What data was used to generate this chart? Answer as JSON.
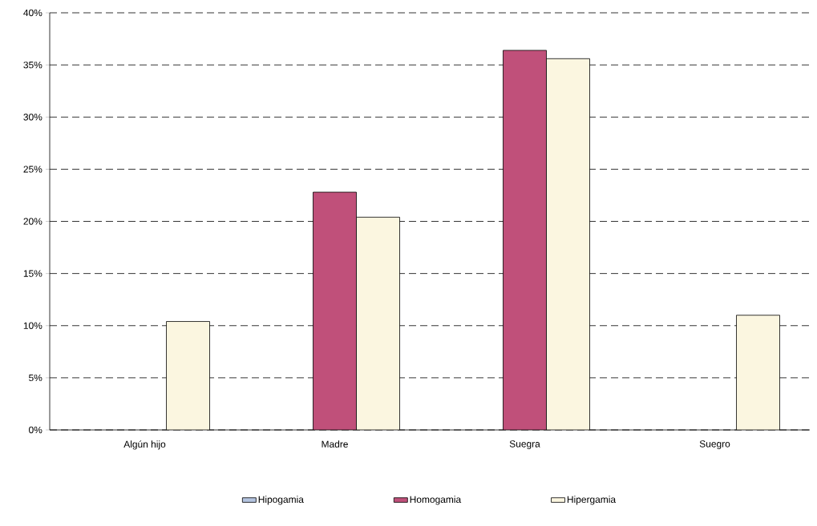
{
  "chart_data": {
    "type": "bar",
    "categories": [
      "Algún hijo",
      "Madre",
      "Suegra",
      "Suegro"
    ],
    "series": [
      {
        "name": "Hipogamia",
        "color": "#b4c4e0",
        "values": [
          null,
          null,
          null,
          null
        ]
      },
      {
        "name": "Homogamia",
        "color": "#c0507a",
        "values": [
          null,
          22.8,
          36.4,
          null
        ]
      },
      {
        "name": "Hipergamia",
        "color": "#fbf6e0",
        "values": [
          10.4,
          20.4,
          35.6,
          11.0
        ]
      }
    ],
    "ylim": [
      0,
      40
    ],
    "yticks": [
      {
        "value": 0,
        "label": "0%"
      },
      {
        "value": 5,
        "label": "5%"
      },
      {
        "value": 10,
        "label": "10%"
      },
      {
        "value": 15,
        "label": "15%"
      },
      {
        "value": 20,
        "label": "20%"
      },
      {
        "value": 25,
        "label": "25%"
      },
      {
        "value": 30,
        "label": "30%"
      },
      {
        "value": 35,
        "label": "35%"
      },
      {
        "value": 40,
        "label": "40%"
      }
    ],
    "grid": "y",
    "legend": "bottom"
  }
}
